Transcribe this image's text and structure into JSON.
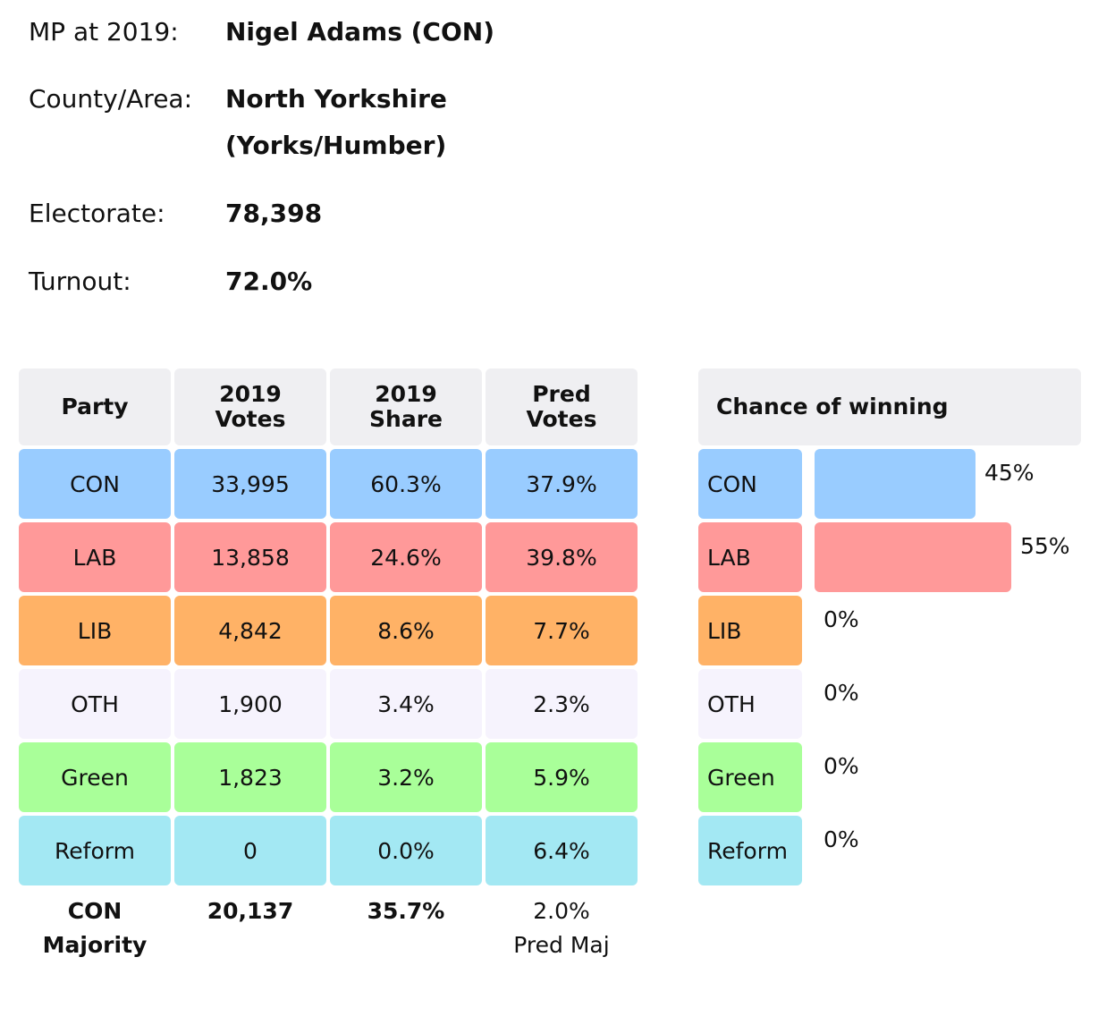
{
  "info": {
    "mp_label": "MP at 2019:",
    "mp_value": "Nigel Adams  (CON)",
    "county_label": "County/Area:",
    "county_value_line1": "North Yorkshire",
    "county_value_line2": "(Yorks/Humber)",
    "electorate_label": "Electorate:",
    "electorate_value": "78,398",
    "turnout_label": "Turnout:",
    "turnout_value": "72.0%"
  },
  "table": {
    "headers": [
      [
        "Party"
      ],
      [
        "2019",
        "Votes"
      ],
      [
        "2019",
        "Share"
      ],
      [
        "Pred",
        "Votes"
      ]
    ],
    "rows": [
      {
        "party": "CON",
        "votes": "33,995",
        "share": "60.3%",
        "pred": "37.9%",
        "color": "#99ccff"
      },
      {
        "party": "LAB",
        "votes": "13,858",
        "share": "24.6%",
        "pred": "39.8%",
        "color": "#ff9999"
      },
      {
        "party": "LIB",
        "votes": "4,842",
        "share": "8.6%",
        "pred": "7.7%",
        "color": "#ffb266"
      },
      {
        "party": "OTH",
        "votes": "1,900",
        "share": "3.4%",
        "pred": "2.3%",
        "color": "#f6f3fd"
      },
      {
        "party": "Green",
        "votes": "1,823",
        "share": "3.2%",
        "pred": "5.9%",
        "color": "#a9ff99"
      },
      {
        "party": "Reform",
        "votes": "0",
        "share": "0.0%",
        "pred": "6.4%",
        "color": "#a3e8f3"
      }
    ],
    "footer": {
      "majority_line1": "CON",
      "majority_line2": "Majority",
      "majority_votes": "20,137",
      "majority_share": "35.7%",
      "pred_maj_value": "2.0%",
      "pred_maj_label": "Pred Maj"
    }
  },
  "chance": {
    "header": "Chance of winning",
    "rows": [
      {
        "party": "CON",
        "pct": 45,
        "label": "45%"
      },
      {
        "party": "LAB",
        "pct": 55,
        "label": "55%"
      },
      {
        "party": "LIB",
        "pct": 0,
        "label": "0%"
      },
      {
        "party": "OTH",
        "pct": 0,
        "label": "0%"
      },
      {
        "party": "Green",
        "pct": 0,
        "label": "0%"
      },
      {
        "party": "Reform",
        "pct": 0,
        "label": "0%"
      }
    ]
  }
}
